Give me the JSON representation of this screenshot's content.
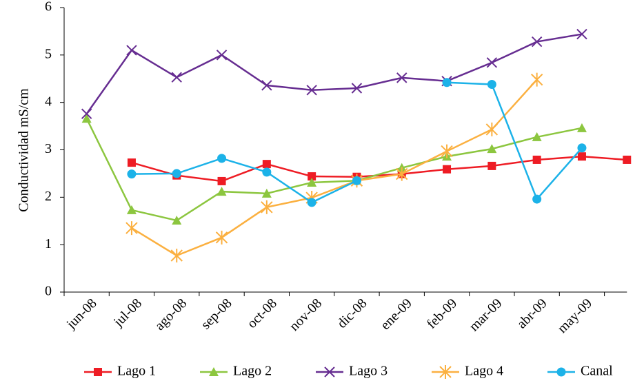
{
  "chart_data": {
    "type": "line",
    "y_label": "Conductividad mS/cm",
    "categories": [
      "jun-08",
      "jul-08",
      "ago-08",
      "sep-08",
      "oct-08",
      "nov-08",
      "dic-08",
      "ene-09",
      "feb-09",
      "mar-09",
      "abr-09",
      "may-09",
      null
    ],
    "series": [
      {
        "name": "Lago 1",
        "color": "#ee1c24",
        "marker": "square",
        "values": [
          null,
          2.73,
          2.46,
          2.34,
          2.7,
          2.44,
          2.43,
          2.49,
          2.59,
          2.66,
          2.79,
          2.86,
          2.79
        ]
      },
      {
        "name": "Lago 2",
        "color": "#8cc63f",
        "marker": "triangle",
        "values": [
          3.66,
          1.73,
          1.51,
          2.12,
          2.08,
          2.31,
          2.35,
          2.62,
          2.86,
          3.02,
          3.27,
          3.46,
          null
        ]
      },
      {
        "name": "Lago 3",
        "color": "#662d91",
        "marker": "x",
        "values": [
          3.76,
          5.1,
          4.53,
          5.0,
          4.36,
          4.26,
          4.3,
          4.52,
          4.45,
          4.84,
          5.28,
          5.44,
          null
        ]
      },
      {
        "name": "Lago 4",
        "color": "#fbb040",
        "marker": "star",
        "values": [
          null,
          1.35,
          0.77,
          1.15,
          1.79,
          1.99,
          2.35,
          2.49,
          2.97,
          3.43,
          4.48,
          null,
          null
        ]
      },
      {
        "name": "Canal",
        "color": "#1cb2e8",
        "marker": "circle",
        "values": [
          null,
          2.49,
          2.5,
          2.82,
          2.53,
          1.89,
          2.35,
          null,
          4.42,
          4.38,
          1.96,
          3.04,
          null
        ]
      }
    ],
    "ylim": [
      0,
      6
    ],
    "yticks": [
      0,
      1,
      2,
      3,
      4,
      5,
      6
    ],
    "grid": false,
    "legend": "bottom"
  }
}
